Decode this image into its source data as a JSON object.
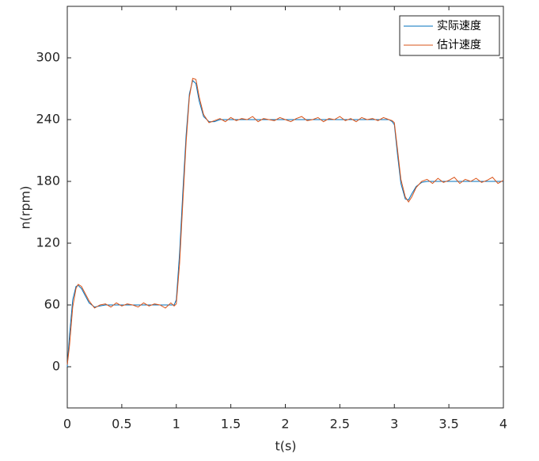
{
  "chart_data": {
    "type": "line",
    "xlabel": "t(s)",
    "ylabel": "n(rpm)",
    "x": [
      0,
      0.02,
      0.05,
      0.08,
      0.1,
      0.13,
      0.16,
      0.2,
      0.25,
      0.3,
      0.35,
      0.4,
      0.45,
      0.5,
      0.55,
      0.6,
      0.65,
      0.7,
      0.75,
      0.8,
      0.85,
      0.9,
      0.95,
      0.98,
      1.0,
      1.03,
      1.06,
      1.09,
      1.12,
      1.15,
      1.18,
      1.21,
      1.25,
      1.3,
      1.35,
      1.4,
      1.45,
      1.5,
      1.55,
      1.6,
      1.65,
      1.7,
      1.75,
      1.8,
      1.85,
      1.9,
      1.95,
      2,
      2.05,
      2.1,
      2.15,
      2.2,
      2.25,
      2.3,
      2.35,
      2.4,
      2.45,
      2.5,
      2.55,
      2.6,
      2.65,
      2.7,
      2.75,
      2.8,
      2.85,
      2.9,
      2.95,
      2.98,
      3.0,
      3.03,
      3.06,
      3.1,
      3.13,
      3.16,
      3.2,
      3.25,
      3.3,
      3.35,
      3.4,
      3.45,
      3.5,
      3.55,
      3.6,
      3.65,
      3.7,
      3.75,
      3.8,
      3.85,
      3.9,
      3.95,
      4
    ],
    "series": [
      {
        "name": "实际速度",
        "color": "#0072BD",
        "values": [
          0,
          30,
          65,
          78,
          79,
          76,
          70,
          62,
          58,
          59,
          60,
          60,
          60,
          60,
          60,
          60,
          60,
          60,
          60,
          60,
          60,
          60,
          60,
          60,
          65,
          110,
          170,
          225,
          265,
          278,
          275,
          258,
          243,
          238,
          238,
          240,
          240,
          240,
          240,
          240,
          240,
          240,
          240,
          240,
          240,
          240,
          240,
          240,
          240,
          240,
          240,
          240,
          240,
          240,
          240,
          240,
          240,
          240,
          240,
          240,
          240,
          240,
          240,
          240,
          240,
          240,
          240,
          238,
          235,
          205,
          178,
          163,
          162,
          168,
          175,
          179,
          180,
          180,
          180,
          180,
          180,
          180,
          180,
          180,
          180,
          180,
          180,
          180,
          180,
          180,
          180
        ]
      },
      {
        "name": "估计速度",
        "color": "#D95319",
        "values": [
          2,
          20,
          58,
          76,
          80,
          78,
          72,
          64,
          57,
          60,
          61,
          58,
          62,
          59,
          61,
          60,
          58,
          62,
          59,
          61,
          60,
          57,
          62,
          59,
          61,
          100,
          160,
          218,
          262,
          280,
          279,
          262,
          245,
          237,
          239,
          241,
          238,
          242,
          239,
          241,
          240,
          243,
          238,
          241,
          240,
          239,
          242,
          240,
          238,
          241,
          243,
          239,
          240,
          242,
          238,
          241,
          240,
          243,
          239,
          241,
          238,
          242,
          240,
          241,
          239,
          242,
          240,
          239,
          237,
          210,
          182,
          165,
          160,
          165,
          174,
          180,
          182,
          178,
          183,
          179,
          181,
          184,
          178,
          182,
          180,
          183,
          179,
          181,
          184,
          178,
          181
        ]
      }
    ],
    "xlim": [
      0,
      4
    ],
    "xticks": [
      0,
      0.5,
      1,
      1.5,
      2,
      2.5,
      3,
      3.5,
      4
    ],
    "ylim": [
      -40,
      350
    ],
    "yticks": [
      0,
      60,
      120,
      180,
      240,
      300
    ],
    "legend": "upper-right"
  }
}
